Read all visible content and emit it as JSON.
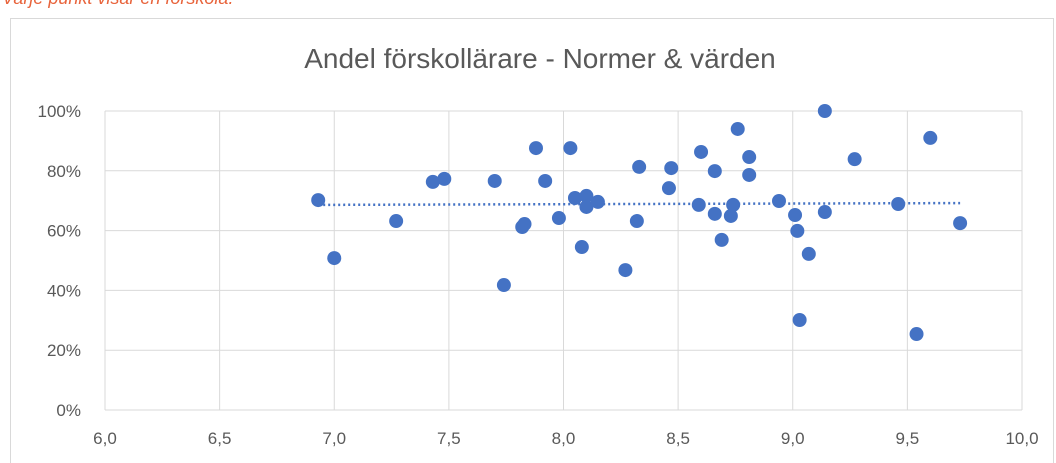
{
  "note_text": "Varje punkt visar en förskola.",
  "chart_data": {
    "type": "scatter",
    "title": "Andel förskollärare - Normer & värden",
    "color": "#4472c4",
    "grid": true,
    "x": [
      6.93,
      7.0,
      7.27,
      7.43,
      7.48,
      7.7,
      7.74,
      7.82,
      7.83,
      7.88,
      7.92,
      7.98,
      8.03,
      8.05,
      8.08,
      8.1,
      8.1,
      8.15,
      8.27,
      8.32,
      8.33,
      8.46,
      8.47,
      8.6,
      8.59,
      8.66,
      8.66,
      8.69,
      8.73,
      8.74,
      8.76,
      8.81,
      8.81,
      8.94,
      9.01,
      9.02,
      9.03,
      9.07,
      9.14,
      9.14,
      9.27,
      9.46,
      9.54,
      9.6,
      9.73
    ],
    "values": [
      70.2,
      50.8,
      63.2,
      76.3,
      77.3,
      76.6,
      41.8,
      61.2,
      62.2,
      87.6,
      76.6,
      64.2,
      87.6,
      70.9,
      54.5,
      71.6,
      67.9,
      69.6,
      46.8,
      63.2,
      81.3,
      74.2,
      80.9,
      86.3,
      68.6,
      79.9,
      65.6,
      56.9,
      64.9,
      68.6,
      94.0,
      84.6,
      78.6,
      69.9,
      65.2,
      59.9,
      30.1,
      52.2,
      100,
      66.2,
      83.9,
      68.9,
      25.4,
      91.0,
      62.5
    ],
    "trendline": {
      "x": [
        6.93,
        9.73
      ],
      "values": [
        68.6,
        69.2
      ]
    },
    "xlim": [
      6,
      10
    ],
    "xticks": [
      {
        "value": 6,
        "label": "6,0"
      },
      {
        "value": 6.5,
        "label": "6,5"
      },
      {
        "value": 7,
        "label": "7,0"
      },
      {
        "value": 7.5,
        "label": "7,5"
      },
      {
        "value": 8,
        "label": "8,0"
      },
      {
        "value": 8.5,
        "label": "8,5"
      },
      {
        "value": 9,
        "label": "9,0"
      },
      {
        "value": 9.5,
        "label": "9,5"
      },
      {
        "value": 10,
        "label": "10,0"
      }
    ],
    "ylim": [
      0,
      100
    ],
    "yticks": [
      {
        "value": 0,
        "label": "0%"
      },
      {
        "value": 20,
        "label": "20%"
      },
      {
        "value": 40,
        "label": "40%"
      },
      {
        "value": 60,
        "label": "60%"
      },
      {
        "value": 80,
        "label": "80%"
      },
      {
        "value": 100,
        "label": "100%"
      }
    ]
  }
}
